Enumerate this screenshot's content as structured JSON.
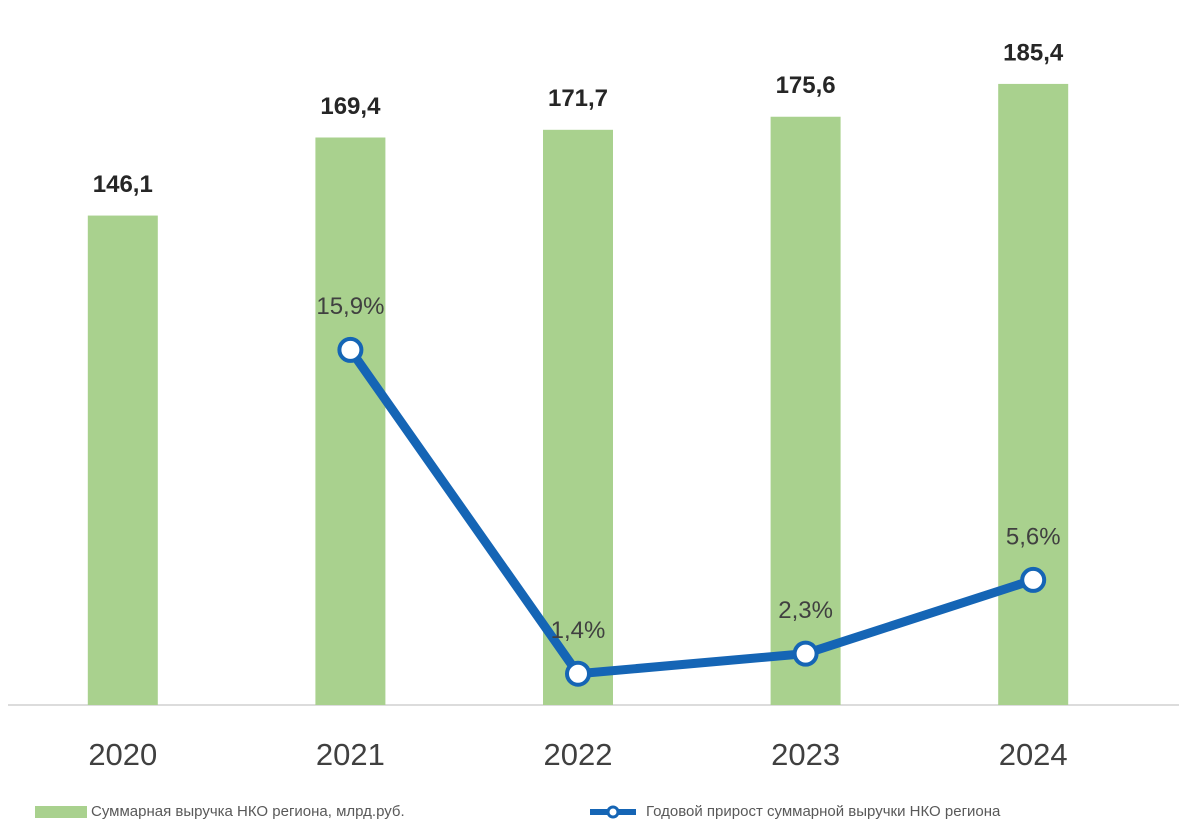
{
  "chart_data": {
    "type": "bar",
    "categories": [
      "2020",
      "2021",
      "2022",
      "2023",
      "2024"
    ],
    "series": [
      {
        "name": "Суммарная выручка НКО региона, млрд.руб.",
        "type": "bar",
        "color": "#a9d18e",
        "values": [
          146.1,
          169.4,
          171.7,
          175.6,
          185.4
        ],
        "value_labels": [
          "146,1",
          "169,4",
          "171,7",
          "175,6",
          "185,4"
        ]
      },
      {
        "name": "Годовой прирост суммарной выручки НКО региона",
        "type": "line",
        "axis": "y2",
        "color": "#1565b5",
        "values": [
          null,
          15.9,
          1.4,
          2.3,
          5.6
        ],
        "value_labels": [
          null,
          "15,9%",
          "1,4%",
          "2,3%",
          "5,6%"
        ]
      }
    ],
    "ylim": [
      0,
      200
    ],
    "y2lim": [
      0,
      30
    ],
    "legend": "bottom"
  }
}
